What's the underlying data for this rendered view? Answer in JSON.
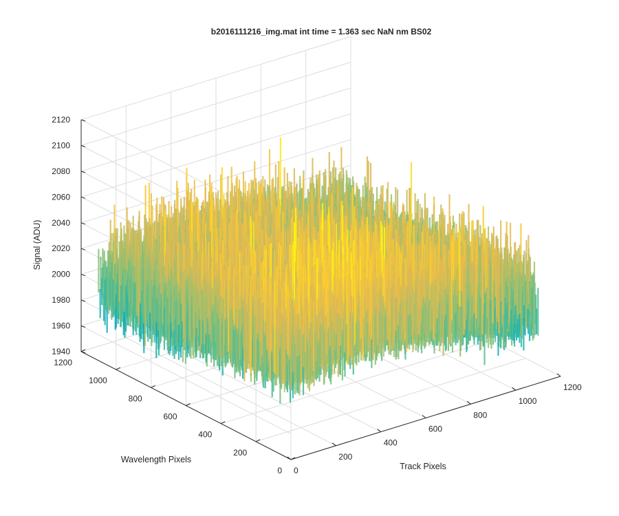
{
  "chart_data": {
    "type": "surface",
    "title": "b2016111216_img.mat int time = 1.363 sec  NaN nm BS02",
    "xlabel": "Track Pixels",
    "ylabel": "Wavelength Pixels",
    "zlabel": "Signal (ADU)",
    "xlim": [
      0,
      1200
    ],
    "ylim": [
      0,
      1200
    ],
    "zlim": [
      1940,
      2120
    ],
    "xticks": [
      "0",
      "200",
      "400",
      "600",
      "800",
      "1000",
      "1200"
    ],
    "yticks": [
      "0",
      "200",
      "400",
      "600",
      "800",
      "1000",
      "1200"
    ],
    "zticks": [
      "1940",
      "1960",
      "1980",
      "2000",
      "2020",
      "2040",
      "2060",
      "2080",
      "2100",
      "2120"
    ],
    "data_extent": {
      "x": [
        0,
        1100
      ],
      "y": [
        0,
        1100
      ]
    },
    "signal_mean": 2005,
    "signal_range_approx": [
      1950,
      2070
    ],
    "colormap": "parula",
    "grid": true
  }
}
